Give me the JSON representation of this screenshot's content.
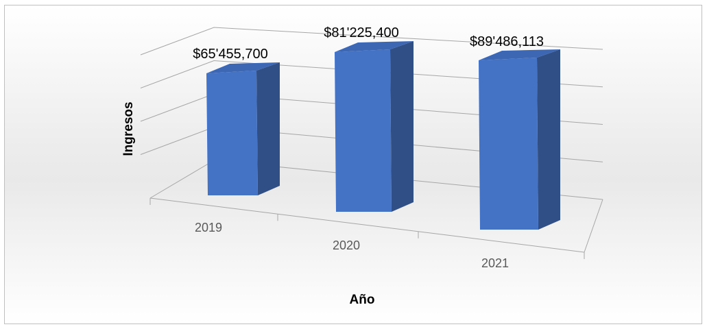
{
  "chart_data": {
    "type": "bar",
    "title": "",
    "xlabel": "Año",
    "ylabel": "Ingresos",
    "categories": [
      "2019",
      "2020",
      "2021"
    ],
    "values": [
      65455700,
      81225400,
      89486113
    ],
    "data_labels": [
      "$65'455,700",
      "$81'225,400",
      "$89'486,113"
    ],
    "ylim": [
      0,
      100000000
    ],
    "grid": true,
    "legend": "none",
    "bar_style": "3d-column",
    "colors": {
      "bar_front": "#4472c4",
      "bar_side": "#2f4f86",
      "bar_top": "#3d67b3",
      "gridline": "#a6a6a6"
    }
  }
}
